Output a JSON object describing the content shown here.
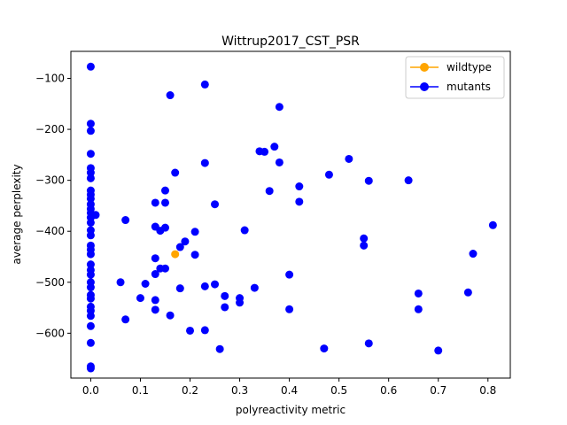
{
  "chart_data": {
    "type": "scatter",
    "title": "Wittrup2017_CST_PSR",
    "xlabel": "polyreactivity metric",
    "ylabel": "average perplexity",
    "xlim": [
      -0.04,
      0.845
    ],
    "ylim": [
      -688,
      -47
    ],
    "xticks": [
      "0.0",
      "0.1",
      "0.2",
      "0.3",
      "0.4",
      "0.5",
      "0.6",
      "0.7",
      "0.8"
    ],
    "xtick_values": [
      0.0,
      0.1,
      0.2,
      0.3,
      0.4,
      0.5,
      0.6,
      0.7,
      0.8
    ],
    "yticks": [
      "−100",
      "−200",
      "−300",
      "−400",
      "−500",
      "−600"
    ],
    "ytick_values": [
      -100,
      -200,
      -300,
      -400,
      -500,
      -600
    ],
    "grid": false,
    "legend_position": "top-right",
    "series": [
      {
        "name": "wildtype",
        "color": "#ffa500",
        "points": [
          [
            0.17,
            -445
          ]
        ]
      },
      {
        "name": "mutants",
        "color": "#0000ff",
        "points": [
          [
            0.0,
            -77
          ],
          [
            0.0,
            -189
          ],
          [
            0.0,
            -203
          ],
          [
            0.0,
            -248
          ],
          [
            0.0,
            -276
          ],
          [
            0.0,
            -285
          ],
          [
            0.0,
            -296
          ],
          [
            0.0,
            -320
          ],
          [
            0.0,
            -328
          ],
          [
            0.0,
            -336
          ],
          [
            0.0,
            -347
          ],
          [
            0.0,
            -356
          ],
          [
            0.0,
            -364
          ],
          [
            0.0,
            -373
          ],
          [
            0.0,
            -383
          ],
          [
            0.0,
            -398
          ],
          [
            0.0,
            -408
          ],
          [
            0.0,
            -428
          ],
          [
            0.0,
            -436
          ],
          [
            0.0,
            -445
          ],
          [
            0.0,
            -465
          ],
          [
            0.0,
            -476
          ],
          [
            0.0,
            -485
          ],
          [
            0.0,
            -500
          ],
          [
            0.0,
            -510
          ],
          [
            0.0,
            -525
          ],
          [
            0.0,
            -532
          ],
          [
            0.0,
            -548
          ],
          [
            0.0,
            -556
          ],
          [
            0.0,
            -566
          ],
          [
            0.0,
            -586
          ],
          [
            0.0,
            -619
          ],
          [
            0.0,
            -665
          ],
          [
            0.0,
            -669
          ],
          [
            0.01,
            -368
          ],
          [
            0.06,
            -500
          ],
          [
            0.07,
            -378
          ],
          [
            0.07,
            -573
          ],
          [
            0.1,
            -531
          ],
          [
            0.11,
            -503
          ],
          [
            0.13,
            -344
          ],
          [
            0.13,
            -391
          ],
          [
            0.13,
            -453
          ],
          [
            0.13,
            -484
          ],
          [
            0.13,
            -535
          ],
          [
            0.13,
            -554
          ],
          [
            0.14,
            -399
          ],
          [
            0.14,
            -473
          ],
          [
            0.15,
            -320
          ],
          [
            0.15,
            -344
          ],
          [
            0.15,
            -393
          ],
          [
            0.15,
            -473
          ],
          [
            0.16,
            -133
          ],
          [
            0.16,
            -565
          ],
          [
            0.17,
            -285
          ],
          [
            0.18,
            -431
          ],
          [
            0.18,
            -512
          ],
          [
            0.19,
            -420
          ],
          [
            0.2,
            -595
          ],
          [
            0.21,
            -401
          ],
          [
            0.21,
            -446
          ],
          [
            0.23,
            -112
          ],
          [
            0.23,
            -266
          ],
          [
            0.23,
            -508
          ],
          [
            0.23,
            -594
          ],
          [
            0.25,
            -347
          ],
          [
            0.25,
            -504
          ],
          [
            0.26,
            -631
          ],
          [
            0.27,
            -527
          ],
          [
            0.27,
            -549
          ],
          [
            0.3,
            -531
          ],
          [
            0.3,
            -540
          ],
          [
            0.31,
            -398
          ],
          [
            0.33,
            -511
          ],
          [
            0.34,
            -243
          ],
          [
            0.35,
            -244
          ],
          [
            0.36,
            -321
          ],
          [
            0.37,
            -234
          ],
          [
            0.38,
            -156
          ],
          [
            0.38,
            -265
          ],
          [
            0.4,
            -485
          ],
          [
            0.4,
            -553
          ],
          [
            0.42,
            -312
          ],
          [
            0.42,
            -342
          ],
          [
            0.47,
            -630
          ],
          [
            0.48,
            -289
          ],
          [
            0.52,
            -258
          ],
          [
            0.55,
            -414
          ],
          [
            0.55,
            -428
          ],
          [
            0.56,
            -301
          ],
          [
            0.56,
            -620
          ],
          [
            0.64,
            -300
          ],
          [
            0.66,
            -522
          ],
          [
            0.66,
            -553
          ],
          [
            0.7,
            -634
          ],
          [
            0.76,
            -520
          ],
          [
            0.77,
            -444
          ],
          [
            0.81,
            -388
          ]
        ]
      }
    ]
  }
}
